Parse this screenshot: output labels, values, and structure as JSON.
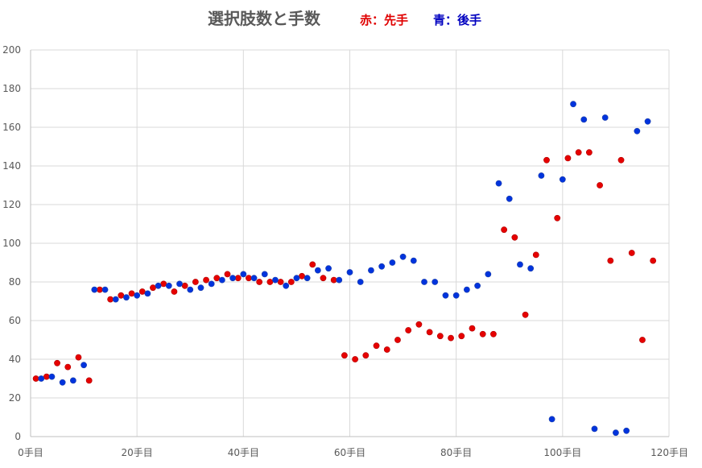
{
  "chart_data": {
    "type": "scatter",
    "title": "選択肢数と手数",
    "legend_red": "赤：先手",
    "legend_blue": "青：後手",
    "xlim": [
      0,
      120
    ],
    "ylim": [
      0,
      200
    ],
    "x_ticks": [
      0,
      20,
      40,
      60,
      80,
      100,
      120
    ],
    "x_tick_labels": [
      "0手目",
      "20手目",
      "40手目",
      "60手目",
      "80手目",
      "100手目",
      "120手目"
    ],
    "y_ticks": [
      0,
      20,
      40,
      60,
      80,
      100,
      120,
      140,
      160,
      180,
      200
    ],
    "y_tick_labels": [
      "0",
      "20",
      "40",
      "60",
      "80",
      "100",
      "120",
      "140",
      "160",
      "180",
      "200"
    ],
    "grid": true,
    "colors": {
      "red": "#e60000",
      "blue": "#0033dd",
      "outline": "#2244aa"
    },
    "series": [
      {
        "color": "red",
        "points": [
          [
            1,
            30
          ],
          [
            3,
            31
          ],
          [
            5,
            38
          ],
          [
            7,
            36
          ],
          [
            9,
            41
          ],
          [
            11,
            29
          ],
          [
            13,
            76
          ],
          [
            15,
            71
          ],
          [
            17,
            73
          ],
          [
            19,
            74
          ],
          [
            21,
            75
          ],
          [
            23,
            77
          ],
          [
            25,
            79
          ],
          [
            27,
            75
          ],
          [
            29,
            78
          ],
          [
            31,
            80
          ],
          [
            33,
            81
          ],
          [
            35,
            82
          ],
          [
            37,
            84
          ],
          [
            39,
            82
          ],
          [
            41,
            82
          ],
          [
            43,
            80
          ],
          [
            45,
            80
          ],
          [
            47,
            80
          ],
          [
            49,
            80
          ],
          [
            51,
            83
          ],
          [
            53,
            89
          ],
          [
            55,
            82
          ],
          [
            57,
            81
          ],
          [
            59,
            42
          ],
          [
            61,
            40
          ],
          [
            63,
            42
          ],
          [
            65,
            47
          ],
          [
            67,
            45
          ],
          [
            69,
            50
          ],
          [
            71,
            55
          ],
          [
            73,
            58
          ],
          [
            75,
            54
          ],
          [
            77,
            52
          ],
          [
            79,
            51
          ],
          [
            81,
            52
          ],
          [
            83,
            56
          ],
          [
            85,
            53
          ],
          [
            87,
            53
          ],
          [
            89,
            107
          ],
          [
            91,
            103
          ],
          [
            93,
            63
          ],
          [
            95,
            94
          ],
          [
            97,
            143
          ],
          [
            99,
            113
          ],
          [
            101,
            144
          ],
          [
            103,
            147
          ],
          [
            105,
            147
          ],
          [
            107,
            130
          ],
          [
            109,
            91
          ],
          [
            111,
            143
          ],
          [
            113,
            95
          ],
          [
            115,
            50
          ],
          [
            117,
            91
          ]
        ]
      },
      {
        "color": "blue",
        "points": [
          [
            2,
            30
          ],
          [
            4,
            31
          ],
          [
            6,
            28
          ],
          [
            8,
            29
          ],
          [
            10,
            37
          ],
          [
            12,
            76
          ],
          [
            14,
            76
          ],
          [
            16,
            71
          ],
          [
            18,
            72
          ],
          [
            20,
            73
          ],
          [
            22,
            74
          ],
          [
            24,
            78
          ],
          [
            26,
            78
          ],
          [
            28,
            79
          ],
          [
            30,
            76
          ],
          [
            32,
            77
          ],
          [
            34,
            79
          ],
          [
            36,
            81
          ],
          [
            38,
            82
          ],
          [
            40,
            84
          ],
          [
            42,
            82
          ],
          [
            44,
            84
          ],
          [
            46,
            81
          ],
          [
            48,
            78
          ],
          [
            50,
            82
          ],
          [
            52,
            82
          ],
          [
            54,
            86
          ],
          [
            56,
            87
          ],
          [
            58,
            81
          ],
          [
            60,
            85
          ],
          [
            62,
            80
          ],
          [
            64,
            86
          ],
          [
            66,
            88
          ],
          [
            68,
            90
          ],
          [
            70,
            93
          ],
          [
            72,
            91
          ],
          [
            74,
            80
          ],
          [
            76,
            80
          ],
          [
            78,
            73
          ],
          [
            80,
            73
          ],
          [
            82,
            76
          ],
          [
            84,
            78
          ],
          [
            86,
            84
          ],
          [
            88,
            131
          ],
          [
            90,
            123
          ],
          [
            92,
            89
          ],
          [
            94,
            87
          ],
          [
            96,
            135
          ],
          [
            98,
            9
          ],
          [
            100,
            133
          ],
          [
            102,
            172
          ],
          [
            104,
            164
          ],
          [
            106,
            4
          ],
          [
            108,
            165
          ],
          [
            110,
            2
          ],
          [
            112,
            3
          ],
          [
            114,
            158
          ],
          [
            116,
            163
          ]
        ]
      }
    ]
  }
}
